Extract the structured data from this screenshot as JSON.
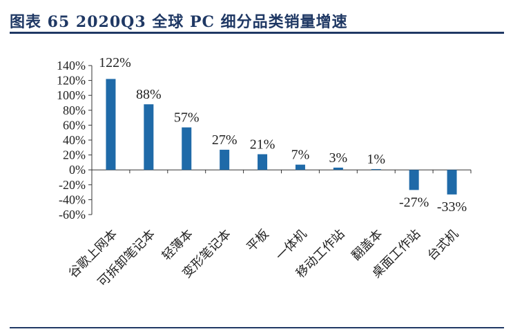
{
  "header": {
    "title": "图表 65   2020Q3 全球 PC 细分品类销量增速"
  },
  "chart_data": {
    "type": "bar",
    "title": "2020Q3 全球 PC 细分品类销量增速",
    "categories": [
      "谷歌上网本",
      "可拆卸笔记本",
      "轻薄本",
      "变形笔记本",
      "平板",
      "一体机",
      "移动工作站",
      "翻盖本",
      "桌面工作站",
      "台式机"
    ],
    "values": [
      122,
      88,
      57,
      27,
      21,
      7,
      3,
      1,
      -27,
      -33
    ],
    "data_labels": [
      "122%",
      "88%",
      "57%",
      "27%",
      "21%",
      "7%",
      "3%",
      "1%",
      "-27%",
      "-33%"
    ],
    "ylim": [
      -60,
      140
    ],
    "yticks": [
      140,
      120,
      100,
      80,
      60,
      40,
      20,
      0,
      -20,
      -40,
      -60
    ],
    "ytick_labels": [
      "140%",
      "120%",
      "100%",
      "80%",
      "60%",
      "40%",
      "20%",
      "0%",
      "-20%",
      "-40%",
      "-60%"
    ],
    "xlabel": "",
    "ylabel": "",
    "bar_color": "#1f6aa8",
    "grid": false
  }
}
